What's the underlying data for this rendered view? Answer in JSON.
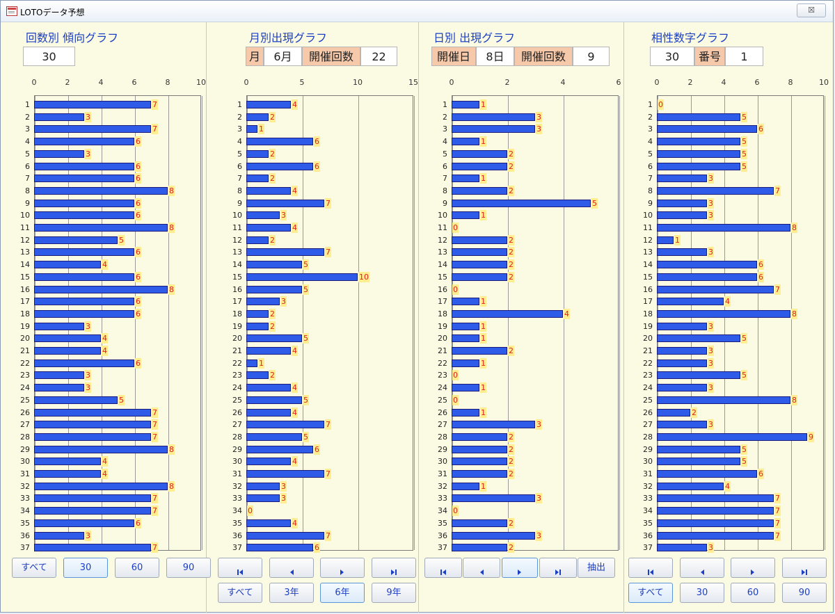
{
  "window": {
    "title": "LOTOデータ予想",
    "close_label": "☒"
  },
  "panels": [
    {
      "title": "回数別 傾向グラフ",
      "header": [
        {
          "text": "30",
          "label": false
        }
      ],
      "axis_ticks": [
        "0",
        "2",
        "4",
        "6",
        "8",
        "10"
      ],
      "values": [
        7,
        3,
        7,
        6,
        3,
        6,
        6,
        8,
        6,
        6,
        8,
        5,
        6,
        4,
        6,
        8,
        6,
        6,
        3,
        4,
        4,
        6,
        3,
        3,
        5,
        7,
        7,
        7,
        8,
        4,
        4,
        8,
        7,
        7,
        6,
        3,
        7
      ],
      "buttons_row1": [
        "すべて",
        "30",
        "60",
        "90"
      ],
      "buttons_row2": []
    },
    {
      "title": "月別出現グラフ",
      "header": [
        {
          "text": "月",
          "label": true
        },
        {
          "text": "6月",
          "label": false
        },
        {
          "text": "開催回数",
          "label": true
        },
        {
          "text": "22",
          "label": false
        }
      ],
      "axis_ticks": [
        "0",
        "5",
        "10",
        "15"
      ],
      "values": [
        4,
        2,
        1,
        6,
        2,
        6,
        2,
        4,
        7,
        3,
        4,
        2,
        7,
        5,
        10,
        5,
        3,
        2,
        2,
        5,
        4,
        1,
        2,
        4,
        5,
        4,
        7,
        5,
        6,
        4,
        7,
        3,
        3,
        0,
        4,
        7,
        6
      ],
      "buttons_row1": [
        "first",
        "prev",
        "next",
        "last"
      ],
      "buttons_row2": [
        "すべて",
        "3年",
        "6年",
        "9年"
      ]
    },
    {
      "title": "日別 出現グラフ",
      "header": [
        {
          "text": "開催日",
          "label": true
        },
        {
          "text": "8日",
          "label": false
        },
        {
          "text": "開催回数",
          "label": true
        },
        {
          "text": "9",
          "label": false
        }
      ],
      "axis_ticks": [
        "0",
        "2",
        "4",
        "6"
      ],
      "values": [
        1,
        3,
        3,
        1,
        2,
        2,
        1,
        2,
        5,
        1,
        0,
        2,
        2,
        2,
        2,
        0,
        1,
        4,
        1,
        1,
        2,
        1,
        0,
        1,
        0,
        1,
        3,
        2,
        2,
        2,
        2,
        1,
        3,
        0,
        2,
        3,
        2
      ],
      "buttons_row1": [
        "first",
        "prev",
        "next",
        "last",
        "抽出"
      ],
      "buttons_row2": []
    },
    {
      "title": "相性数字グラフ",
      "header": [
        {
          "text": "30",
          "label": false
        },
        {
          "text": "番号",
          "label": true
        },
        {
          "text": "1",
          "label": false
        }
      ],
      "axis_ticks": [
        "0",
        "2",
        "4",
        "6",
        "8",
        "10"
      ],
      "values": [
        0,
        5,
        6,
        5,
        5,
        5,
        3,
        7,
        3,
        3,
        8,
        1,
        3,
        6,
        6,
        7,
        4,
        8,
        3,
        5,
        3,
        3,
        5,
        3,
        8,
        2,
        3,
        9,
        5,
        5,
        6,
        4,
        7,
        7,
        7,
        7,
        3
      ],
      "buttons_row1": [
        "first",
        "prev",
        "next",
        "last"
      ],
      "buttons_row2": [
        "すべて",
        "30",
        "60",
        "90"
      ]
    }
  ],
  "icons": {
    "first": "first-icon",
    "prev": "prev-icon",
    "next": "next-icon",
    "last": "last-icon"
  },
  "colors": {
    "bar": "#2e5be8",
    "value_text": "#e02020",
    "value_bg": "#ffee90",
    "title": "#1d3fc2",
    "label_bg": "#f5c9a9",
    "window_bg": "#fbfbe3"
  }
}
